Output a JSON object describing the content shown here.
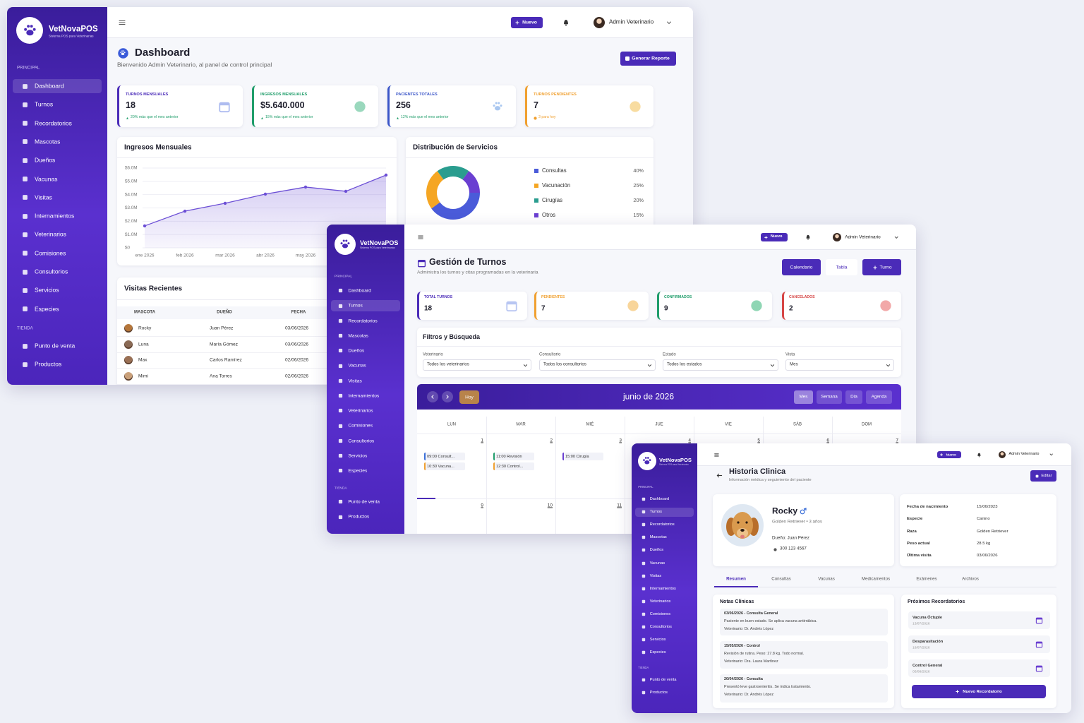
{
  "brand": {
    "name": "VetNovaPOS",
    "tagline": "Sistema POS para Veterinarias"
  },
  "sidebar": [
    {
      "title": "PRINCIPAL",
      "items": [
        "Dashboard",
        "Turnos",
        "Recordatorios",
        "Mascotas",
        "Dueños",
        "Vacunas",
        "Visitas",
        "Internamientos",
        "Veterinarios",
        "Comisiones",
        "Consultorios",
        "Servicios",
        "Especies"
      ]
    },
    {
      "title": "TIENDA",
      "items": [
        "Punto de venta",
        "Productos"
      ]
    }
  ],
  "topbar": {
    "new_button": "Nuevo",
    "user": "Admin Veterinario"
  },
  "dashboard": {
    "title": "Dashboard",
    "subtitle": "Bienvenido Admin Veterinario, al panel de control principal",
    "report_button": "Generar Reporte",
    "stats": [
      {
        "label": "TURNOS MENSUALES",
        "value": "18",
        "note": "20% más que el mes anterior"
      },
      {
        "label": "INGRESOS MENSUALES",
        "value": "$5.640.000",
        "note": "15% más que el mes anterior"
      },
      {
        "label": "PACIENTES TOTALES",
        "value": "256",
        "note": "12% más que el mes anterior"
      },
      {
        "label": "TURNOS PENDIENTES",
        "value": "7",
        "note": "3 para hoy"
      }
    ],
    "income_chart": {
      "type": "line",
      "title": "Ingresos Mensuales",
      "categories": [
        "ene 2026",
        "feb 2026",
        "mar 2026",
        "abr 2026",
        "may 2026",
        null,
        null
      ],
      "values": [
        1650000,
        2760000,
        3350000,
        4040000,
        4570000,
        4250000,
        5470000
      ],
      "color": "#6c4fd6",
      "ylim": [
        0,
        6000000
      ],
      "yticks": [
        {
          "value": 0,
          "label": "$0"
        },
        {
          "value": 1000000,
          "label": "$1.0M"
        },
        {
          "value": 2000000,
          "label": "$2.0M"
        },
        {
          "value": 3000000,
          "label": "$3.0M"
        },
        {
          "value": 4000000,
          "label": "$4.0M"
        },
        {
          "value": 5000000,
          "label": "$5.0M"
        },
        {
          "value": 6000000,
          "label": "$6.0M"
        }
      ],
      "grid": true
    },
    "services_chart": {
      "type": "pie",
      "title": "Distribución de Servicios",
      "categories": [
        "Consultas",
        "Vacunación",
        "Cirugías",
        "Otros"
      ],
      "values": [
        40,
        25,
        20,
        15
      ],
      "value_labels": [
        "40%",
        "25%",
        "20%",
        "15%"
      ],
      "colors": [
        "#4a5bd9",
        "#f5a623",
        "#2a9d8f",
        "#6a3fd1"
      ]
    },
    "recent_visits": {
      "title": "Visitas Recientes",
      "columns": [
        "MASCOTA",
        "DUEÑO",
        "FECHA"
      ],
      "rows": [
        [
          "Rocky",
          "Juan Pérez",
          "03/06/2026"
        ],
        [
          "Luna",
          "María Gómez",
          "03/06/2026"
        ],
        [
          "Max",
          "Carlos Ramírez",
          "02/06/2026"
        ],
        [
          "Mimi",
          "Ana Torres",
          "02/06/2026"
        ]
      ]
    }
  },
  "turnos": {
    "title": "Gestión de Turnos",
    "subtitle": "Administra los turnos y citas programadas en la veterinaria",
    "view_buttons": [
      "Calendario",
      "Tabla"
    ],
    "new_button": "Turno",
    "stats": [
      {
        "label": "TOTAL TURNOS",
        "value": "18"
      },
      {
        "label": "PENDIENTES",
        "value": "7"
      },
      {
        "label": "CONFIRMADOS",
        "value": "9"
      },
      {
        "label": "CANCELADOS",
        "value": "2"
      }
    ],
    "filters": {
      "title": "Filtros y Búsqueda",
      "fields": [
        {
          "label": "Veterinario",
          "value": "Todos los veterinarios"
        },
        {
          "label": "Consultorio",
          "value": "Todos los consultorios"
        },
        {
          "label": "Estado",
          "value": "Todos los estados"
        },
        {
          "label": "Vista",
          "value": "Mes"
        }
      ]
    },
    "calendar": {
      "today_button": "Hoy",
      "title": "junio de 2026",
      "views": [
        "Mes",
        "Semana",
        "Día",
        "Agenda"
      ],
      "weekdays": [
        "LUN",
        "MAR",
        "MIÉ",
        "JUE",
        "VIE",
        "SÁB",
        "DOM"
      ],
      "weeks": [
        [
          {
            "day": "1",
            "events": [
              {
                "text": "09:00 Consult...",
                "color": "#3b6fd8"
              },
              {
                "text": "10:30 Vacuna...",
                "color": "#f0a030"
              }
            ]
          },
          {
            "day": "2",
            "events": [
              {
                "text": "11:00 Revisión",
                "color": "#1f9d6a"
              },
              {
                "text": "12:30 Control...",
                "color": "#f0a030"
              }
            ]
          },
          {
            "day": "3",
            "events": [
              {
                "text": "15:00 Cirugía",
                "color": "#6a3fd1"
              }
            ]
          },
          {
            "day": "4",
            "events": []
          },
          {
            "day": "5",
            "events": []
          },
          {
            "day": "6",
            "events": []
          },
          {
            "day": "7",
            "events": []
          }
        ],
        [
          {
            "day": "9",
            "events": []
          },
          {
            "day": "10",
            "events": []
          },
          {
            "day": "11",
            "events": []
          }
        ]
      ]
    }
  },
  "historia": {
    "title": "Historia Clinica",
    "subtitle": "Información médica y seguimiento del paciente",
    "edit_button": "Editar",
    "patient": {
      "name": "Rocky",
      "breed_age": "Golden Retriever • 3 años",
      "owner": "Dueño: Juan Pérez",
      "phone": "300 123 4567"
    },
    "details": [
      {
        "label": "Fecha de nacimiento",
        "value": "15/06/2023"
      },
      {
        "label": "Especie",
        "value": "Canino"
      },
      {
        "label": "Raza",
        "value": "Golden Retriever"
      },
      {
        "label": "Peso actual",
        "value": "28.5 kg"
      },
      {
        "label": "Última visita",
        "value": "03/06/2026"
      }
    ],
    "tabs": [
      "Resumen",
      "Consultas",
      "Vacunas",
      "Medicamentos",
      "Exámenes",
      "Archivos"
    ],
    "notes": {
      "title": "Notas Clínicas",
      "items": [
        {
          "heading": "03/06/2026 - Consulta General",
          "text": "Paciente en buen estado. Se aplica vacuna antirrábica.",
          "vet": "Veterinario: Dr. Andrés López"
        },
        {
          "heading": "15/05/2026 - Control",
          "text": "Revisión de rutina. Peso: 27.8 kg. Todo normal.",
          "vet": "Veterinario: Dra. Laura Martínez"
        },
        {
          "heading": "20/04/2026 - Consulta",
          "text": "Presentó leve gastroenteritis. Se indica tratamiento.",
          "vet": "Veterinario: Dr. Andrés López"
        }
      ]
    },
    "reminders": {
      "title": "Próximos Recordatorios",
      "items": [
        {
          "name": "Vacuna Óctuple",
          "date": "13/07/2026"
        },
        {
          "name": "Desparasitación",
          "date": "18/07/2026"
        },
        {
          "name": "Control General",
          "date": "05/08/2026"
        }
      ],
      "button": "Nuevo Recordatorio"
    }
  }
}
